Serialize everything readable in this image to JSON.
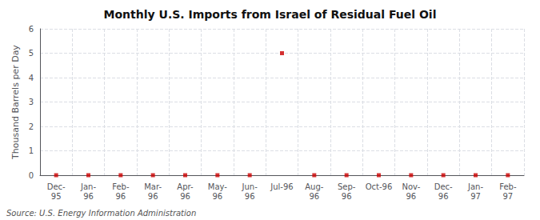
{
  "chart_data": {
    "type": "scatter",
    "title": "Monthly U.S. Imports from Israel of Residual Fuel Oil",
    "ylabel": "Thousand Barrels per Day",
    "annotations": [
      "Source: U.S. Energy Information Administration"
    ],
    "categories": [
      "Dec-\n95",
      "Jan-\n96",
      "Feb-\n96",
      "Mar-\n96",
      "Apr-\n96",
      "May-\n96",
      "Jun-\n96",
      "Jul-96",
      "Aug-\n96",
      "Sep-\n96",
      "Oct-96",
      "Nov-\n96",
      "Dec-\n96",
      "Jan-\n97",
      "Feb-\n97"
    ],
    "values": [
      0,
      0,
      0,
      0,
      0,
      0,
      0,
      5,
      0,
      0,
      0,
      0,
      0,
      0,
      0
    ],
    "color": "#cc0000",
    "marker": "square",
    "ylim": [
      0,
      6
    ],
    "yticks": [
      0,
      1,
      2,
      3,
      4,
      5,
      6
    ],
    "grid": true
  }
}
